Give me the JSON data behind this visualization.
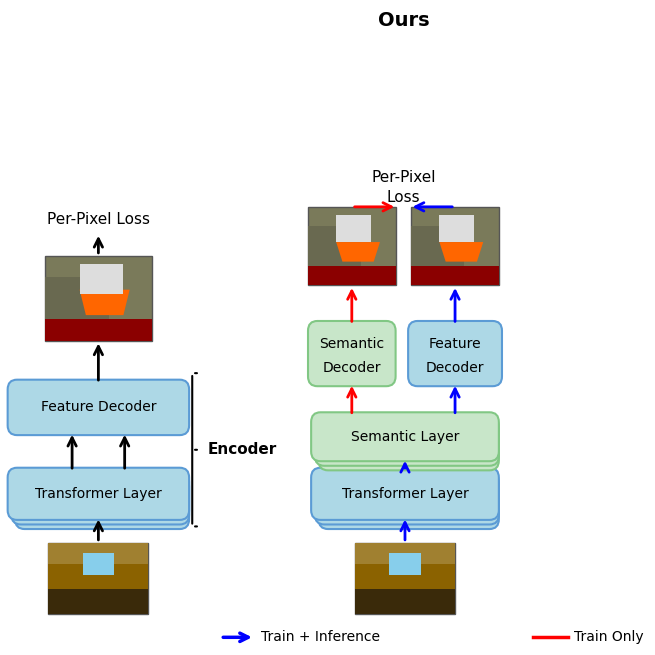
{
  "title": "Ours",
  "left_title": "",
  "box_light_blue": "#ADD8E6",
  "box_light_green": "#C8E6C9",
  "box_border_blue": "#5B9BD5",
  "box_border_green": "#81C784",
  "arrow_blue": "#0000FF",
  "arrow_red": "#FF0000",
  "arrow_black": "#000000",
  "encoder_label": "Encoder",
  "legend_blue": "Train + Inference",
  "legend_red": "Train Only"
}
